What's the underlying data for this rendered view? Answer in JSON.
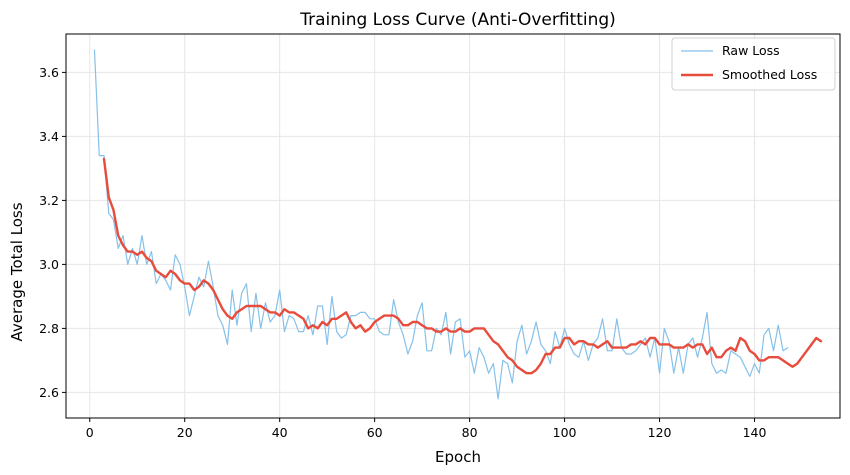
{
  "chart_data": {
    "type": "line",
    "title": "Training Loss Curve (Anti-Overfitting)",
    "xlabel": "Epoch",
    "ylabel": "Average Total Loss",
    "xlim": [
      -5,
      158
    ],
    "ylim": [
      2.52,
      3.72
    ],
    "x_ticks": [
      0,
      20,
      40,
      60,
      80,
      100,
      120,
      140
    ],
    "y_ticks": [
      2.6,
      2.8,
      3.0,
      3.2,
      3.4,
      3.6
    ],
    "x_tick_labels": [
      "0",
      "20",
      "40",
      "60",
      "80",
      "100",
      "120",
      "140"
    ],
    "y_tick_labels": [
      "2.6",
      "2.8",
      "3.0",
      "3.2",
      "3.4",
      "3.6"
    ],
    "grid": true,
    "legend_position": "top-right",
    "colors": {
      "raw": "#85c1e9",
      "smoothed": "#e74c3c",
      "grid": "#e6e6e6"
    },
    "series": [
      {
        "name": "Raw Loss",
        "x_start": 1,
        "values": [
          3.67,
          3.34,
          3.34,
          3.16,
          3.14,
          3.05,
          3.09,
          3.0,
          3.05,
          3.0,
          3.09,
          3.0,
          3.04,
          2.94,
          2.97,
          2.95,
          2.92,
          3.03,
          3.0,
          2.93,
          2.84,
          2.9,
          2.96,
          2.93,
          3.01,
          2.93,
          2.84,
          2.81,
          2.75,
          2.92,
          2.81,
          2.91,
          2.94,
          2.79,
          2.91,
          2.8,
          2.88,
          2.82,
          2.84,
          2.92,
          2.79,
          2.84,
          2.83,
          2.79,
          2.79,
          2.84,
          2.78,
          2.87,
          2.87,
          2.75,
          2.9,
          2.79,
          2.77,
          2.78,
          2.84,
          2.84,
          2.85,
          2.85,
          2.83,
          2.83,
          2.79,
          2.78,
          2.78,
          2.89,
          2.82,
          2.78,
          2.72,
          2.76,
          2.84,
          2.88,
          2.73,
          2.73,
          2.8,
          2.78,
          2.85,
          2.72,
          2.82,
          2.83,
          2.71,
          2.73,
          2.66,
          2.74,
          2.71,
          2.66,
          2.69,
          2.58,
          2.7,
          2.69,
          2.63,
          2.76,
          2.81,
          2.72,
          2.76,
          2.82,
          2.75,
          2.73,
          2.69,
          2.79,
          2.74,
          2.8,
          2.75,
          2.72,
          2.71,
          2.76,
          2.7,
          2.75,
          2.77,
          2.83,
          2.73,
          2.73,
          2.83,
          2.74,
          2.72,
          2.72,
          2.73,
          2.75,
          2.77,
          2.71,
          2.77,
          2.66,
          2.8,
          2.76,
          2.66,
          2.74,
          2.66,
          2.75,
          2.77,
          2.71,
          2.77,
          2.85,
          2.69,
          2.66,
          2.67,
          2.66,
          2.73,
          2.72,
          2.71,
          2.68,
          2.65,
          2.69,
          2.66,
          2.78,
          2.8,
          2.73,
          2.81,
          2.73,
          2.74
        ]
      },
      {
        "name": "Smoothed Loss",
        "x_start": 3,
        "values": [
          3.33,
          3.21,
          3.17,
          3.09,
          3.06,
          3.04,
          3.04,
          3.03,
          3.04,
          3.02,
          3.01,
          2.98,
          2.97,
          2.96,
          2.98,
          2.97,
          2.95,
          2.94,
          2.94,
          2.92,
          2.93,
          2.95,
          2.94,
          2.92,
          2.89,
          2.86,
          2.84,
          2.83,
          2.85,
          2.86,
          2.87,
          2.87,
          2.87,
          2.87,
          2.86,
          2.85,
          2.85,
          2.84,
          2.86,
          2.85,
          2.85,
          2.84,
          2.83,
          2.8,
          2.81,
          2.8,
          2.82,
          2.81,
          2.83,
          2.83,
          2.84,
          2.85,
          2.82,
          2.8,
          2.81,
          2.79,
          2.8,
          2.82,
          2.83,
          2.84,
          2.84,
          2.84,
          2.83,
          2.81,
          2.81,
          2.82,
          2.82,
          2.81,
          2.8,
          2.8,
          2.79,
          2.79,
          2.8,
          2.79,
          2.79,
          2.8,
          2.79,
          2.79,
          2.8,
          2.8,
          2.8,
          2.78,
          2.76,
          2.75,
          2.73,
          2.71,
          2.7,
          2.68,
          2.67,
          2.66,
          2.66,
          2.67,
          2.69,
          2.72,
          2.72,
          2.74,
          2.74,
          2.77,
          2.77,
          2.75,
          2.76,
          2.76,
          2.75,
          2.75,
          2.74,
          2.75,
          2.76,
          2.74,
          2.74,
          2.74,
          2.74,
          2.75,
          2.75,
          2.76,
          2.75,
          2.77,
          2.77,
          2.75,
          2.75,
          2.75,
          2.74,
          2.74,
          2.74,
          2.75,
          2.74,
          2.75,
          2.75,
          2.72,
          2.74,
          2.71,
          2.71,
          2.73,
          2.74,
          2.73,
          2.77,
          2.76,
          2.73,
          2.72,
          2.7,
          2.7,
          2.71,
          2.71,
          2.71,
          2.7,
          2.69,
          2.68,
          2.69,
          2.71,
          2.73,
          2.75,
          2.77,
          2.76
        ]
      }
    ]
  }
}
